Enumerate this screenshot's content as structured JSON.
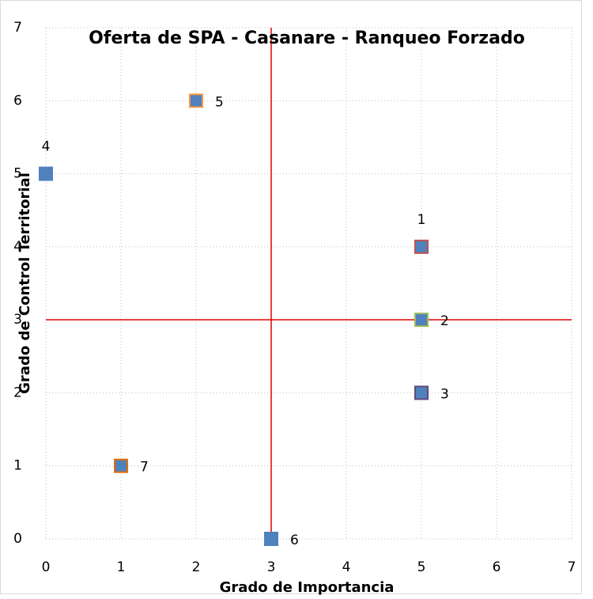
{
  "chart_data": {
    "type": "scatter",
    "title": "Oferta de SPA - Casanare - Ranqueo Forzado",
    "x_label": "Grado de Importancia",
    "y_label": "Grado de Control Territorial",
    "x": [
      5,
      5,
      5,
      0,
      2,
      3,
      1
    ],
    "y": [
      4,
      3,
      2,
      5,
      6,
      0,
      1
    ],
    "point_labels": [
      "1",
      "2",
      "3",
      "4",
      "5",
      "6",
      "7"
    ],
    "color": "#4f81bd",
    "edge_colors": [
      "#c0504d",
      "#9bbb59",
      "#604a7b",
      "#4f81bd",
      "#f79646",
      "#4f81bd",
      "#e46c0a"
    ],
    "reference_lines": {
      "x": 3,
      "y": 3,
      "color": "#e00000"
    },
    "xlim": [
      0,
      7
    ],
    "ylim": [
      0,
      7
    ],
    "xticks": [
      0,
      1,
      2,
      3,
      4,
      5,
      6,
      7
    ],
    "yticks": [
      0,
      1,
      2,
      3,
      4,
      5,
      6,
      7
    ],
    "grid": true
  }
}
